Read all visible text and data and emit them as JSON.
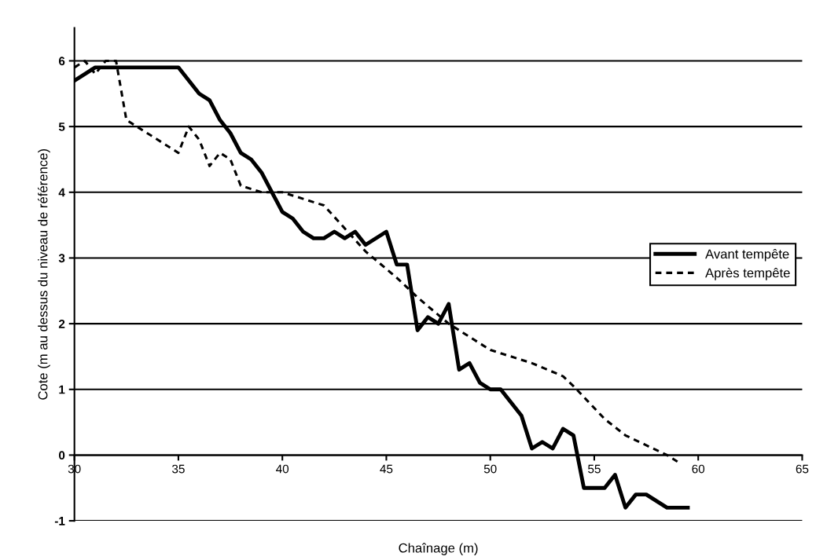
{
  "chart_data": {
    "type": "line",
    "xlabel": "Chaînage (m)",
    "ylabel": "Cote (m au dessus du niveau de référence)",
    "xlim": [
      30,
      65
    ],
    "xticks": [
      30,
      35,
      40,
      45,
      50,
      55,
      60,
      65
    ],
    "ylim": [
      -1,
      6.5
    ],
    "yticks": [
      -1,
      0,
      1,
      2,
      3,
      4,
      5,
      6
    ],
    "grid": "y",
    "legend": "right",
    "marker": "none",
    "series": [
      {
        "name": "Avant tempête",
        "color": "#000000",
        "line_style": "solid",
        "x": [
          30,
          31,
          35,
          36,
          36.5,
          37,
          37.5,
          38,
          38.5,
          39,
          39.5,
          40,
          40.5,
          41,
          41.5,
          42,
          42.5,
          43,
          43.5,
          44,
          45,
          45.5,
          46,
          46.5,
          47,
          47.5,
          48,
          48.5,
          49,
          49.5,
          50,
          50.5,
          51,
          51.5,
          52,
          52.5,
          53,
          53.5,
          54,
          54.5,
          55.5,
          56,
          56.5,
          57,
          57.5,
          58.5,
          59.5
        ],
        "values": [
          5.7,
          5.9,
          5.9,
          5.5,
          5.4,
          5.1,
          4.9,
          4.6,
          4.5,
          4.3,
          4.0,
          3.7,
          3.6,
          3.4,
          3.3,
          3.3,
          3.4,
          3.3,
          3.4,
          3.2,
          3.4,
          2.9,
          2.9,
          1.9,
          2.1,
          2.0,
          2.3,
          1.3,
          1.4,
          1.1,
          1.0,
          1.0,
          0.8,
          0.6,
          0.1,
          0.2,
          0.1,
          0.4,
          0.3,
          -0.5,
          -0.5,
          -0.3,
          -0.8,
          -0.6,
          -0.6,
          -0.8,
          -0.8
        ]
      },
      {
        "name": "Après tempête",
        "color": "#000000",
        "line_style": "dashed",
        "x": [
          30,
          30.5,
          31,
          31.5,
          32,
          32.5,
          33,
          35,
          35.5,
          36,
          36.5,
          37,
          37.5,
          38,
          39,
          40,
          41.5,
          42,
          44,
          45.5,
          46.5,
          48,
          50,
          52,
          53.5,
          54,
          55.5,
          56.5,
          58.5,
          59
        ],
        "values": [
          5.9,
          6.0,
          5.8,
          6.0,
          6.0,
          5.1,
          5.0,
          4.6,
          5.0,
          4.8,
          4.4,
          4.6,
          4.5,
          4.1,
          4.0,
          4.0,
          3.85,
          3.8,
          3.1,
          2.7,
          2.4,
          2.0,
          1.6,
          1.4,
          1.2,
          1.05,
          0.55,
          0.3,
          0.0,
          -0.1
        ]
      }
    ]
  }
}
